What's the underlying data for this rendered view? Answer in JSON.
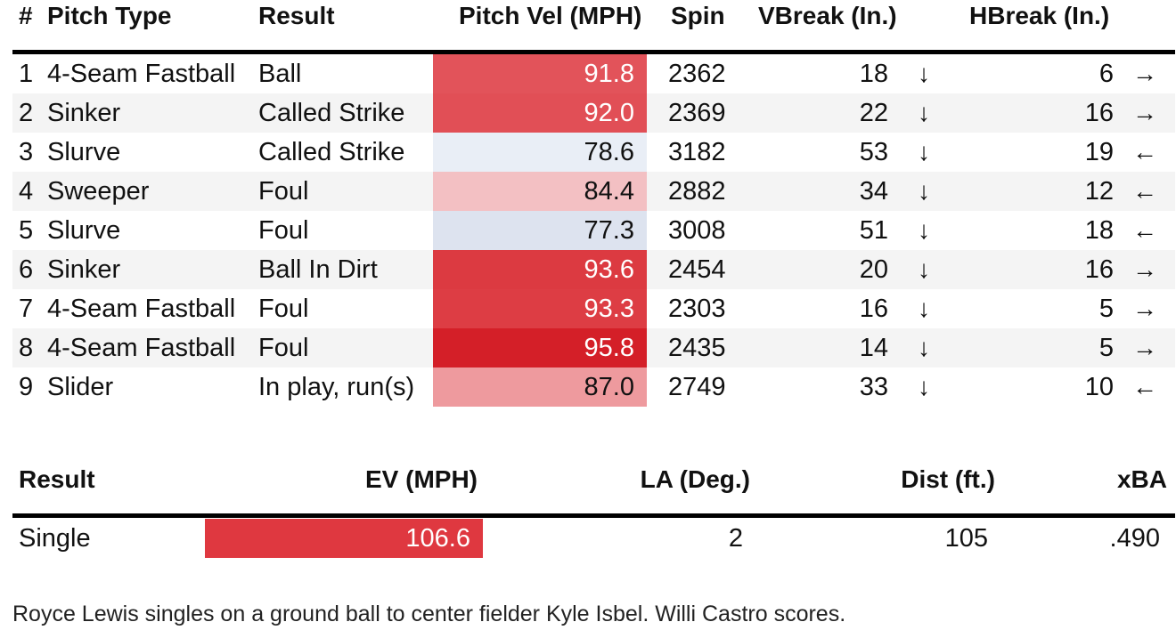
{
  "pitch_table": {
    "headers": {
      "num": "#",
      "pitch_type": "Pitch Type",
      "result": "Result",
      "vel": "Pitch Vel (MPH)",
      "spin": "Spin",
      "vbreak": "VBreak (In.)",
      "hbreak": "HBreak (In.)"
    },
    "rows": [
      {
        "num": "1",
        "pitch_type": "4-Seam Fastball",
        "result": "Ball",
        "vel": "91.8",
        "spin": "2362",
        "vbreak": "18",
        "vbreak_arrow": "↓",
        "hbreak": "6",
        "hbreak_arrow": "→",
        "vel_bg": "#e2535a",
        "vel_fg": "#ffffff"
      },
      {
        "num": "2",
        "pitch_type": "Sinker",
        "result": "Called Strike",
        "vel": "92.0",
        "spin": "2369",
        "vbreak": "22",
        "vbreak_arrow": "↓",
        "hbreak": "16",
        "hbreak_arrow": "→",
        "vel_bg": "#e14f56",
        "vel_fg": "#ffffff"
      },
      {
        "num": "3",
        "pitch_type": "Slurve",
        "result": "Called Strike",
        "vel": "78.6",
        "spin": "3182",
        "vbreak": "53",
        "vbreak_arrow": "↓",
        "hbreak": "19",
        "hbreak_arrow": "←",
        "vel_bg": "#e9eef6",
        "vel_fg": "#111111"
      },
      {
        "num": "4",
        "pitch_type": "Sweeper",
        "result": "Foul",
        "vel": "84.4",
        "spin": "2882",
        "vbreak": "34",
        "vbreak_arrow": "↓",
        "hbreak": "12",
        "hbreak_arrow": "←",
        "vel_bg": "#f3c0c3",
        "vel_fg": "#111111"
      },
      {
        "num": "5",
        "pitch_type": "Slurve",
        "result": "Foul",
        "vel": "77.3",
        "spin": "3008",
        "vbreak": "51",
        "vbreak_arrow": "↓",
        "hbreak": "18",
        "hbreak_arrow": "←",
        "vel_bg": "#dde3ef",
        "vel_fg": "#111111"
      },
      {
        "num": "6",
        "pitch_type": "Sinker",
        "result": "Ball In Dirt",
        "vel": "93.6",
        "spin": "2454",
        "vbreak": "20",
        "vbreak_arrow": "↓",
        "hbreak": "16",
        "hbreak_arrow": "→",
        "vel_bg": "#dc3a41",
        "vel_fg": "#ffffff"
      },
      {
        "num": "7",
        "pitch_type": "4-Seam Fastball",
        "result": "Foul",
        "vel": "93.3",
        "spin": "2303",
        "vbreak": "16",
        "vbreak_arrow": "↓",
        "hbreak": "5",
        "hbreak_arrow": "→",
        "vel_bg": "#dd3d44",
        "vel_fg": "#ffffff"
      },
      {
        "num": "8",
        "pitch_type": "4-Seam Fastball",
        "result": "Foul",
        "vel": "95.8",
        "spin": "2435",
        "vbreak": "14",
        "vbreak_arrow": "↓",
        "hbreak": "5",
        "hbreak_arrow": "→",
        "vel_bg": "#d41f28",
        "vel_fg": "#ffffff"
      },
      {
        "num": "9",
        "pitch_type": "Slider",
        "result": "In play, run(s)",
        "vel": "87.0",
        "spin": "2749",
        "vbreak": "33",
        "vbreak_arrow": "↓",
        "hbreak": "10",
        "hbreak_arrow": "←",
        "vel_bg": "#ee9a9e",
        "vel_fg": "#111111"
      }
    ]
  },
  "hit_table": {
    "headers": {
      "result": "Result",
      "ev": "EV (MPH)",
      "la": "LA (Deg.)",
      "dist": "Dist (ft.)",
      "xba": "xBA"
    },
    "row": {
      "result": "Single",
      "ev": "106.6",
      "la": "2",
      "dist": "105",
      "xba": ".490",
      "ev_bg": "#df3840"
    }
  },
  "description": "Royce Lewis singles on a ground ball to center fielder Kyle Isbel. Willi Castro scores."
}
